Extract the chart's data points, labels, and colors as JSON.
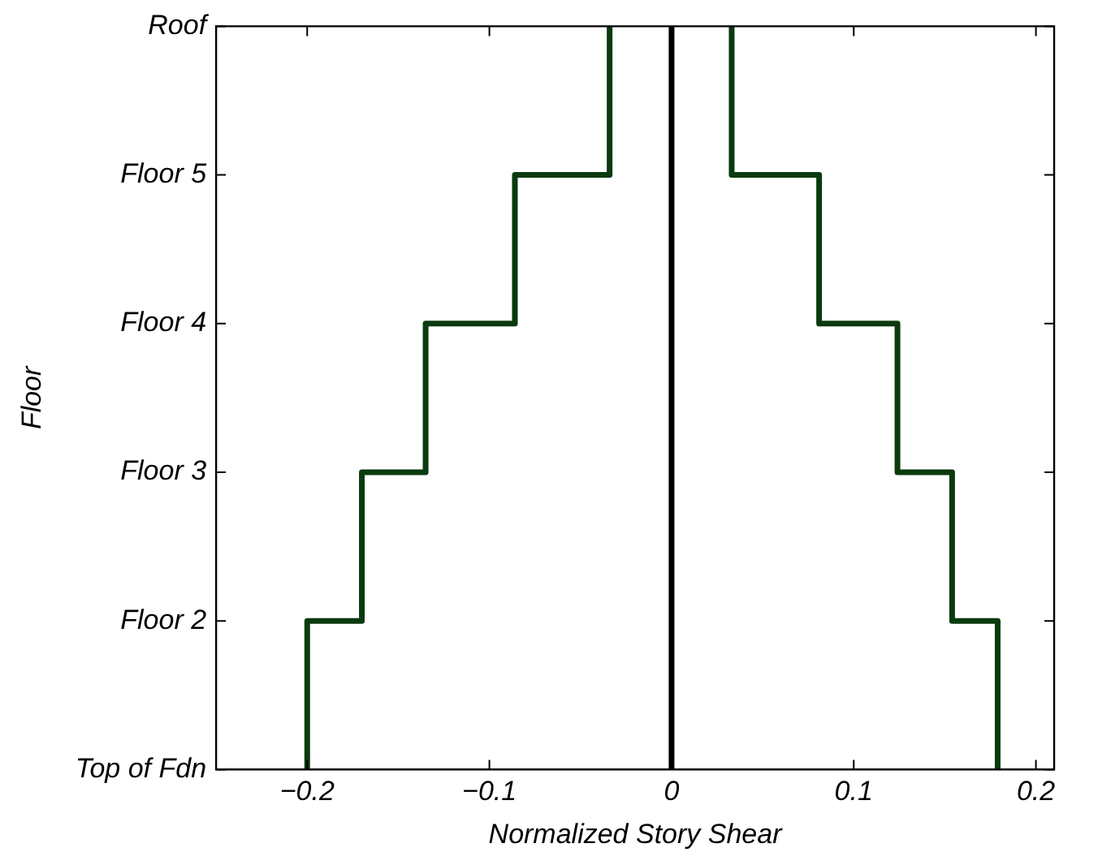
{
  "chart_data": {
    "type": "step",
    "orientation": "horizontal",
    "xlabel": "Normalized Story Shear",
    "ylabel": "Floor",
    "categories": [
      "Roof",
      "Floor 5",
      "Floor 4",
      "Floor 3",
      "Floor 2",
      "Top of Fdn"
    ],
    "xlim": [
      -0.25,
      0.21
    ],
    "xticks": [
      {
        "value": -0.2,
        "label": "−0.2"
      },
      {
        "value": -0.1,
        "label": "−0.1"
      },
      0,
      0.1,
      0.2
    ],
    "series": [
      {
        "color": "#0b3a0f",
        "values": [
          -0.034,
          -0.034,
          -0.086,
          -0.135,
          -0.17,
          -0.2
        ]
      },
      {
        "color": "#0b3a0f",
        "values": [
          0.033,
          0.033,
          0.081,
          0.124,
          0.154,
          0.179
        ]
      }
    ],
    "ref_lines": [
      {
        "axis": "x",
        "value": 0,
        "color": "#000000",
        "line_style": "solid"
      }
    ],
    "grid": false,
    "legend": false,
    "marker": "none",
    "line_style": "solid"
  }
}
